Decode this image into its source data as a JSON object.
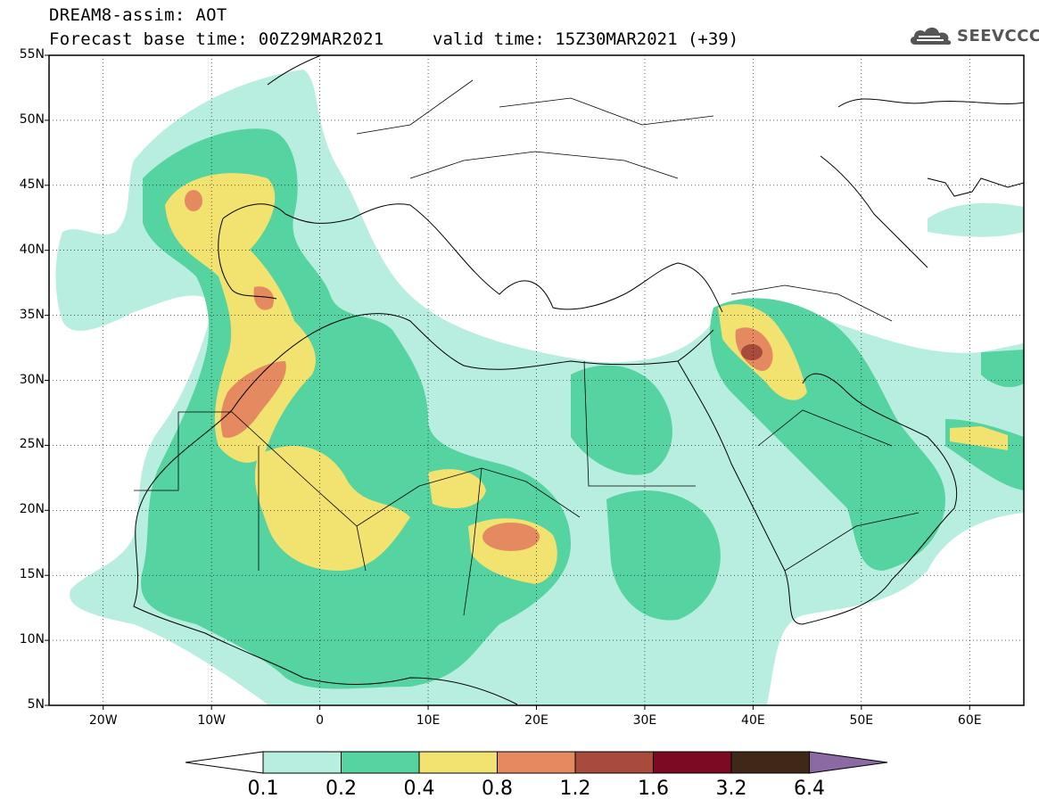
{
  "header": {
    "line1": "DREAM8-assim: AOT",
    "line2": "Forecast base time: 00Z29MAR2021",
    "line2b": "valid time: 15Z30MAR2021 (+39)"
  },
  "logo": {
    "text": "SEEVCCC",
    "icon": "cloud-icon"
  },
  "axes": {
    "lat_labels": [
      "55N",
      "50N",
      "45N",
      "40N",
      "35N",
      "30N",
      "25N",
      "20N",
      "15N",
      "10N",
      "5N"
    ],
    "lon_labels": [
      "20W",
      "10W",
      "0",
      "10E",
      "20E",
      "30E",
      "40E",
      "50E",
      "60E"
    ],
    "lat_range": [
      5,
      55
    ],
    "lon_range": [
      -25,
      65
    ]
  },
  "colorbar": {
    "labels": [
      "0.1",
      "0.2",
      "0.4",
      "0.8",
      "1.2",
      "1.6",
      "3.2",
      "6.4"
    ],
    "colors": [
      "#ffffff",
      "#b7eedf",
      "#55d3a0",
      "#f2e270",
      "#e58a60",
      "#a84a3c",
      "#7b0a22",
      "#3f2818",
      "#8b6aa4"
    ]
  },
  "chart_data": {
    "type": "heatmap",
    "field": "AOT",
    "lat_range": [
      5,
      55
    ],
    "lon_range": [
      -25,
      65
    ],
    "levels": [
      0.1,
      0.2,
      0.4,
      0.8,
      1.2,
      1.6,
      3.2,
      6.4
    ],
    "colors": [
      "#b7eedf",
      "#55d3a0",
      "#f2e270",
      "#e58a60",
      "#a84a3c",
      "#7b0a22",
      "#3f2818",
      "#8b6aa4"
    ]
  }
}
